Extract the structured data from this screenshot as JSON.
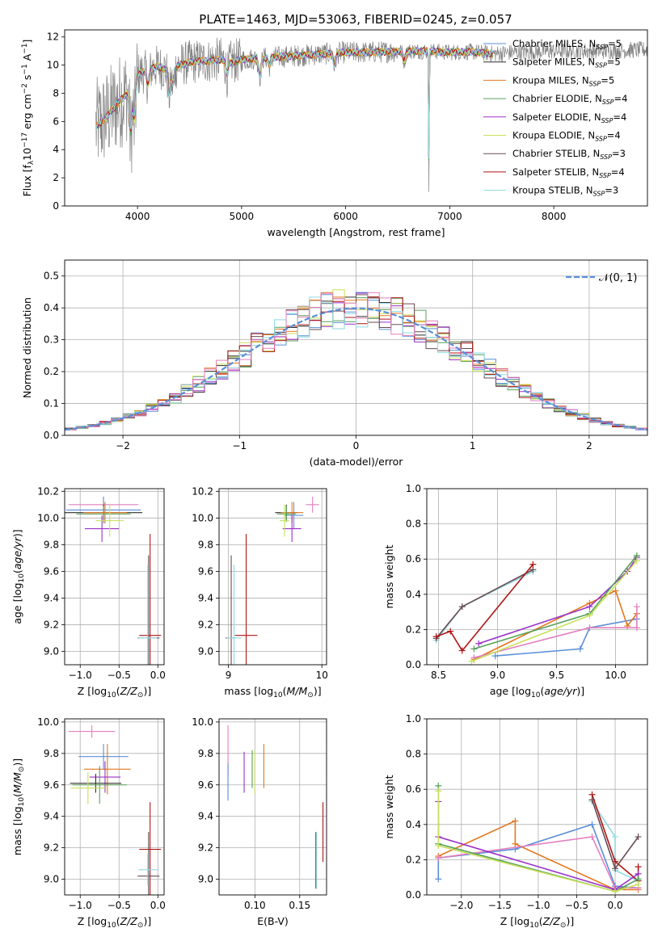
{
  "figure_title": "PLATE=1463, MJD=53063, FIBERID=0245, z=0.057",
  "colors": {
    "Chabrier MILES": "#5a8fd8",
    "Salpeter MILES": "#2f2f2f",
    "Kroupa MILES": "#e3781e",
    "Chabrier ELODIE": "#57a05a",
    "Salpeter ELODIE": "#9b30c8",
    "Kroupa ELODIE": "#c8e05a",
    "Chabrier STELIB": "#6a4a52",
    "Salpeter STELIB": "#b01515",
    "Kroupa STELIB": "#8fd9e0",
    "data": "#808080",
    "pink": "#e37fbf",
    "normal": "#5a8fd8"
  },
  "chart_data": [
    {
      "id": "spectrum",
      "type": "line",
      "xlabel": "wavelength [Angstrom, rest frame]",
      "ylabel": "Flux [f_λ 10^-17 erg cm^-2 s^-1 A^-1]",
      "xlim": [
        3300,
        8900
      ],
      "ylim": [
        0,
        12.5
      ],
      "xticks": [
        4000,
        5000,
        6000,
        7000,
        8000
      ],
      "yticks": [
        0,
        2,
        4,
        6,
        8,
        10,
        12
      ],
      "grid": false,
      "legend_position": "right",
      "legend": [
        {
          "label": "Chabrier MILES, N",
          "sub": "SSP",
          "tail": "=5",
          "color_key": "Chabrier MILES"
        },
        {
          "label": "Salpeter MILES, N",
          "sub": "SSP",
          "tail": "=5",
          "color_key": "Salpeter MILES"
        },
        {
          "label": "Kroupa MILES, N",
          "sub": "SSP",
          "tail": "=5",
          "color_key": "Kroupa MILES"
        },
        {
          "label": "Chabrier ELODIE, N",
          "sub": "SSP",
          "tail": "=4",
          "color_key": "Chabrier ELODIE"
        },
        {
          "label": "Salpeter ELODIE, N",
          "sub": "SSP",
          "tail": "=4",
          "color_key": "Salpeter ELODIE"
        },
        {
          "label": "Kroupa ELODIE, N",
          "sub": "SSP",
          "tail": "=4",
          "color_key": "Kroupa ELODIE"
        },
        {
          "label": "Chabrier STELIB, N",
          "sub": "SSP",
          "tail": "=3",
          "color_key": "Chabrier STELIB"
        },
        {
          "label": "Salpeter STELIB, N",
          "sub": "SSP",
          "tail": "=4",
          "color_key": "Salpeter STELIB"
        },
        {
          "label": "Kroupa STELIB, N",
          "sub": "SSP",
          "tail": "=3",
          "color_key": "Kroupa STELIB"
        }
      ],
      "data_range": [
        3600,
        8900
      ],
      "model_range": [
        3600,
        7420
      ],
      "continuum": [
        [
          3600,
          5.6
        ],
        [
          3700,
          6.3
        ],
        [
          3800,
          7.2
        ],
        [
          3900,
          8.0
        ],
        [
          4000,
          9.3
        ],
        [
          4100,
          9.7
        ],
        [
          4200,
          9.9
        ],
        [
          4300,
          9.6
        ],
        [
          4400,
          10.0
        ],
        [
          4500,
          10.2
        ],
        [
          4600,
          10.3
        ],
        [
          4700,
          10.3
        ],
        [
          4800,
          10.4
        ],
        [
          4900,
          10.2
        ],
        [
          5000,
          10.4
        ],
        [
          5200,
          10.5
        ],
        [
          5400,
          10.6
        ],
        [
          5600,
          10.7
        ],
        [
          5800,
          10.8
        ],
        [
          6000,
          10.9
        ],
        [
          6200,
          10.9
        ],
        [
          6400,
          10.95
        ],
        [
          6600,
          11.0
        ],
        [
          6800,
          11.0
        ],
        [
          7000,
          10.9
        ],
        [
          7200,
          10.95
        ],
        [
          7420,
          10.8
        ],
        [
          7600,
          10.9
        ],
        [
          8000,
          11.0
        ],
        [
          8500,
          11.0
        ],
        [
          8900,
          11.1
        ]
      ],
      "absorption_lines": [
        {
          "x": 3934,
          "depth": 3.5
        },
        {
          "x": 3969,
          "depth": 3.0
        },
        {
          "x": 4102,
          "depth": 1.2
        },
        {
          "x": 4305,
          "depth": 1.8
        },
        {
          "x": 4341,
          "depth": 1.2
        },
        {
          "x": 4861,
          "depth": 1.0
        },
        {
          "x": 5175,
          "depth": 1.3
        },
        {
          "x": 5270,
          "depth": 0.6
        },
        {
          "x": 5893,
          "depth": 0.9
        },
        {
          "x": 6563,
          "depth": 0.7
        },
        {
          "x": 6800,
          "depth": 10.5
        }
      ]
    },
    {
      "id": "residuals",
      "type": "histogram",
      "xlabel": "(data-model)/error",
      "ylabel": "Normed distribution",
      "xlim": [
        -2.5,
        2.5
      ],
      "ylim": [
        0,
        0.55
      ],
      "xticks": [
        -2,
        -1,
        0,
        1,
        2
      ],
      "yticks": [
        0.0,
        0.1,
        0.2,
        0.3,
        0.4,
        0.5
      ],
      "grid": true,
      "legend_position": "top-right",
      "legend_label": "𝒩(0, 1)",
      "bin_width": 0.1,
      "bin_start": -2.5
    },
    {
      "id": "age_vs_Z",
      "type": "errorbar",
      "xlabel": "Z [log10(Z/Z⊙)]",
      "ylabel": "age [log10(age/yr)]",
      "xlim": [
        -1.2,
        0.08
      ],
      "ylim": [
        8.9,
        10.22
      ],
      "xticks": [
        -1.0,
        -0.5,
        0.0
      ],
      "yticks": [
        9.0,
        9.2,
        9.4,
        9.6,
        9.8,
        10.0,
        10.2
      ],
      "grid": true,
      "points": [
        {
          "series": "pink",
          "x": -0.7,
          "xerr": 0.45,
          "y": 10.1,
          "yerr": 0.06
        },
        {
          "series": "Chabrier MILES",
          "x": -0.7,
          "xerr": 0.48,
          "y": 10.06,
          "yerr": 0.1
        },
        {
          "series": "Salpeter MILES",
          "x": -0.7,
          "xerr": 0.5,
          "y": 10.04,
          "yerr": 0.06
        },
        {
          "series": "Kroupa MILES",
          "x": -0.68,
          "xerr": 0.28,
          "y": 10.04,
          "yerr": 0.08
        },
        {
          "series": "Chabrier ELODIE",
          "x": -0.7,
          "xerr": 0.35,
          "y": 10.03,
          "yerr": 0.06
        },
        {
          "series": "Salpeter ELODIE",
          "x": -0.72,
          "xerr": 0.22,
          "y": 9.92,
          "yerr": 0.1
        },
        {
          "series": "Kroupa ELODIE",
          "x": -0.62,
          "xerr": 0.18,
          "y": 9.98,
          "yerr": 0.12
        },
        {
          "series": "Chabrier STELIB",
          "x": -0.12,
          "xerr": 0.14,
          "y": 9.1,
          "yerr": 0.62
        },
        {
          "series": "Salpeter STELIB",
          "x": -0.1,
          "xerr": 0.14,
          "y": 9.12,
          "yerr": 0.76
        },
        {
          "series": "Kroupa STELIB",
          "x": -0.13,
          "xerr": 0.12,
          "y": 9.1,
          "yerr": 0.55
        }
      ]
    },
    {
      "id": "age_vs_mass",
      "type": "errorbar",
      "xlabel": "mass [log10(M/M⊙)]",
      "ylabel": "",
      "xlim": [
        8.9,
        10.05
      ],
      "ylim": [
        8.9,
        10.22
      ],
      "xticks": [
        9,
        10
      ],
      "yticks": [
        9.0,
        9.2,
        9.4,
        9.6,
        9.8,
        10.0,
        10.2
      ],
      "grid": true,
      "points": [
        {
          "series": "pink",
          "x": 9.9,
          "xerr": 0.07,
          "y": 10.1,
          "yerr": 0.06
        },
        {
          "series": "Chabrier MILES",
          "x": 9.7,
          "xerr": 0.1,
          "y": 10.02,
          "yerr": 0.1
        },
        {
          "series": "Salpeter MILES",
          "x": 9.62,
          "xerr": 0.12,
          "y": 10.04,
          "yerr": 0.06
        },
        {
          "series": "Kroupa MILES",
          "x": 9.68,
          "xerr": 0.12,
          "y": 10.04,
          "yerr": 0.08
        },
        {
          "series": "Chabrier ELODIE",
          "x": 9.62,
          "xerr": 0.1,
          "y": 10.03,
          "yerr": 0.06
        },
        {
          "series": "Salpeter ELODIE",
          "x": 9.68,
          "xerr": 0.1,
          "y": 9.92,
          "yerr": 0.1
        },
        {
          "series": "Kroupa ELODIE",
          "x": 9.6,
          "xerr": 0.05,
          "y": 9.98,
          "yerr": 0.12
        },
        {
          "series": "Chabrier STELIB",
          "x": 9.03,
          "xerr": 0.06,
          "y": 9.1,
          "yerr": 0.62
        },
        {
          "series": "Salpeter STELIB",
          "x": 9.19,
          "xerr": 0.12,
          "y": 9.12,
          "yerr": 0.76
        },
        {
          "series": "Kroupa STELIB",
          "x": 9.06,
          "xerr": 0.08,
          "y": 9.1,
          "yerr": 0.55
        }
      ]
    },
    {
      "id": "mw_vs_age",
      "type": "line",
      "xlabel": "age [log10(age/yr)]",
      "ylabel": "mass weight",
      "xlim": [
        8.4,
        10.27
      ],
      "ylim": [
        0,
        1
      ],
      "xticks": [
        8.5,
        9.0,
        9.5,
        10.0
      ],
      "yticks": [
        0.0,
        0.2,
        0.4,
        0.6,
        0.8,
        1.0
      ],
      "grid": true,
      "series": [
        {
          "name_key": "Kroupa STELIB",
          "x": [
            8.48,
            8.7,
            9.3
          ],
          "y": [
            0.14,
            0.33,
            0.53
          ]
        },
        {
          "name_key": "Chabrier STELIB",
          "x": [
            8.48,
            8.7,
            9.3
          ],
          "y": [
            0.15,
            0.33,
            0.54
          ]
        },
        {
          "name_key": "Salpeter STELIB",
          "x": [
            8.48,
            8.6,
            8.7,
            9.3
          ],
          "y": [
            0.16,
            0.19,
            0.08,
            0.57
          ]
        },
        {
          "name_key": "Chabrier MILES",
          "x": [
            8.98,
            9.7,
            9.78,
            10.18
          ],
          "y": [
            0.05,
            0.09,
            0.21,
            0.26
          ]
        },
        {
          "name_key": "Kroupa MILES",
          "x": [
            8.8,
            9.78,
            10.0,
            10.1,
            10.18
          ],
          "y": [
            0.03,
            0.35,
            0.42,
            0.22,
            0.29
          ]
        },
        {
          "name_key": "pink",
          "x": [
            8.8,
            9.78,
            10.18,
            10.18
          ],
          "y": [
            0.04,
            0.21,
            0.21,
            0.33
          ]
        },
        {
          "name_key": "Salpeter ELODIE",
          "x": [
            8.84,
            9.78,
            10.1,
            10.18
          ],
          "y": [
            0.12,
            0.33,
            0.53,
            0.61
          ]
        },
        {
          "name_key": "Chabrier ELODIE",
          "x": [
            8.8,
            9.78,
            10.18
          ],
          "y": [
            0.09,
            0.29,
            0.62
          ]
        },
        {
          "name_key": "Kroupa ELODIE",
          "x": [
            8.78,
            9.78,
            10.18
          ],
          "y": [
            0.02,
            0.28,
            0.59
          ]
        }
      ]
    },
    {
      "id": "mass_vs_Z",
      "type": "errorbar",
      "xlabel": "Z [log10(Z/Z⊙)]",
      "ylabel": "mass [log10(M/M⊙)]",
      "xlim": [
        -1.2,
        0.08
      ],
      "ylim": [
        8.9,
        10.02
      ],
      "xticks": [
        -1.0,
        -0.5,
        0.0
      ],
      "yticks": [
        9.0,
        9.2,
        9.4,
        9.6,
        9.8,
        10.0
      ],
      "grid": true,
      "points": [
        {
          "series": "pink",
          "x": -0.85,
          "xerr": 0.3,
          "y": 9.94,
          "yerr": 0.04
        },
        {
          "series": "Chabrier MILES",
          "x": -0.7,
          "xerr": 0.32,
          "y": 9.78,
          "yerr": 0.08
        },
        {
          "series": "Kroupa MILES",
          "x": -0.65,
          "xerr": 0.3,
          "y": 9.7,
          "yerr": 0.16
        },
        {
          "series": "Salpeter ELODIE",
          "x": -0.68,
          "xerr": 0.2,
          "y": 9.65,
          "yerr": 0.1
        },
        {
          "series": "Salpeter MILES",
          "x": -0.8,
          "xerr": 0.33,
          "y": 9.61,
          "yerr": 0.06
        },
        {
          "series": "Chabrier ELODIE",
          "x": -0.75,
          "xerr": 0.35,
          "y": 9.6,
          "yerr": 0.12
        },
        {
          "series": "Kroupa ELODIE",
          "x": -0.9,
          "xerr": 0.22,
          "y": 9.58,
          "yerr": 0.1
        },
        {
          "series": "Salpeter STELIB",
          "x": -0.1,
          "xerr": 0.14,
          "y": 9.19,
          "yerr": 0.3
        },
        {
          "series": "Chabrier STELIB",
          "x": -0.12,
          "xerr": 0.14,
          "y": 9.02,
          "yerr": 0.28
        },
        {
          "series": "Kroupa STELIB",
          "x": -0.13,
          "xerr": 0.12,
          "y": 9.06,
          "yerr": 0.1
        }
      ]
    },
    {
      "id": "mass_vs_EBV",
      "type": "errorbar",
      "xlabel": "E(B-V)",
      "ylabel": "",
      "xlim": [
        0.06,
        0.18
      ],
      "ylim": [
        8.9,
        10.02
      ],
      "xticks": [
        0.1,
        0.15
      ],
      "yticks": [
        9.0,
        9.2,
        9.4,
        9.6,
        9.8,
        10.0
      ],
      "grid": true,
      "points": [
        {
          "series": "pink",
          "x": 0.07,
          "xerr": 0,
          "y": 9.82,
          "yerr": 0.16
        },
        {
          "series": "Chabrier MILES",
          "x": 0.07,
          "xerr": 0,
          "y": 9.62,
          "yerr": 0.12
        },
        {
          "series": "Salpeter ELODIE",
          "x": 0.088,
          "xerr": 0,
          "y": 9.68,
          "yerr": 0.13
        },
        {
          "series": "Chabrier ELODIE",
          "x": 0.097,
          "xerr": 0,
          "y": 9.7,
          "yerr": 0.12
        },
        {
          "series": "Kroupa ELODIE",
          "x": 0.1,
          "xerr": 0,
          "y": 9.68,
          "yerr": 0.14
        },
        {
          "series": "Kroupa MILES",
          "x": 0.11,
          "xerr": 0,
          "y": 9.72,
          "yerr": 0.14
        },
        {
          "series": "Chabrier STELIB",
          "x": 0.168,
          "xerr": 0,
          "y": 9.12,
          "yerr": 0.18
        },
        {
          "series": "Kroupa STELIB",
          "x": 0.169,
          "xerr": 0,
          "y": 9.12,
          "yerr": 0.18
        },
        {
          "series": "Salpeter STELIB",
          "x": 0.176,
          "xerr": 0,
          "y": 9.3,
          "yerr": 0.19
        }
      ]
    },
    {
      "id": "mw_vs_Z",
      "type": "line",
      "xlabel": "Z [log10(Z/Z⊙)]",
      "ylabel": "mass weight",
      "xlim": [
        -2.45,
        0.42
      ],
      "ylim": [
        0,
        1
      ],
      "xticks": [
        -2.0,
        -1.5,
        -1.0,
        -0.5,
        0.0
      ],
      "yticks": [
        0.0,
        0.2,
        0.4,
        0.6,
        0.8,
        1.0
      ],
      "grid": true,
      "series": [
        {
          "name_key": "Kroupa STELIB",
          "x": [
            -0.3,
            0.0,
            0.0,
            0.3
          ],
          "y": [
            0.53,
            0.33,
            0.14,
            0.08
          ]
        },
        {
          "name_key": "Salpeter STELIB",
          "x": [
            -0.3,
            0.0,
            0.3,
            0.3
          ],
          "y": [
            0.57,
            0.19,
            0.08,
            0.16
          ]
        },
        {
          "name_key": "Chabrier STELIB",
          "x": [
            -0.3,
            0.0,
            0.3
          ],
          "y": [
            0.54,
            0.15,
            0.33
          ]
        },
        {
          "name_key": "Chabrier MILES",
          "x": [
            -2.3,
            -2.3,
            -1.3,
            -0.3,
            0.0,
            0.3
          ],
          "y": [
            0.09,
            0.21,
            0.26,
            0.4,
            0.05,
            0.04
          ]
        },
        {
          "name_key": "Kroupa MILES",
          "x": [
            -2.3,
            -1.3,
            -1.3,
            0.0,
            0.3
          ],
          "y": [
            0.22,
            0.42,
            0.29,
            0.03,
            0.03
          ]
        },
        {
          "name_key": "pink",
          "x": [
            -2.3,
            -0.3,
            0.0,
            0.3
          ],
          "y": [
            0.21,
            0.33,
            0.04,
            0.04
          ]
        },
        {
          "name_key": "Salpeter ELODIE",
          "x": [
            -2.3,
            -2.3,
            0.0,
            0.3
          ],
          "y": [
            0.53,
            0.33,
            0.03,
            0.12
          ]
        },
        {
          "name_key": "Chabrier ELODIE",
          "x": [
            -2.3,
            -2.3,
            0.0,
            0.3
          ],
          "y": [
            0.62,
            0.29,
            0.02,
            0.09
          ]
        },
        {
          "name_key": "Kroupa ELODIE",
          "x": [
            -2.3,
            -2.3,
            0.0,
            0.3
          ],
          "y": [
            0.59,
            0.28,
            0.02,
            0.06
          ]
        }
      ]
    }
  ]
}
